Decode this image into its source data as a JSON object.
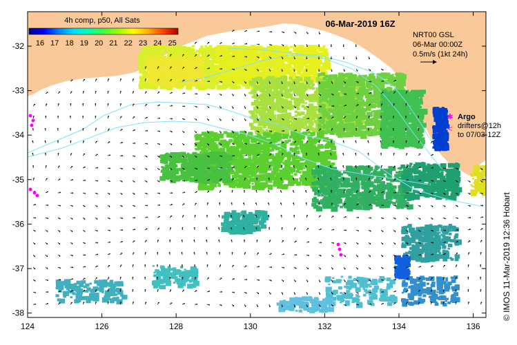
{
  "map": {
    "title": "06-Mar-2019 16Z",
    "colorbar": {
      "title": "4h comp, p50, All Sats",
      "ticks": [
        "16",
        "17",
        "18",
        "19",
        "20",
        "21",
        "22",
        "23",
        "24",
        "25"
      ],
      "colors": [
        "#00008b",
        "#0000ff",
        "#0080ff",
        "#00e0ff",
        "#00ffb0",
        "#40ff40",
        "#a0ff00",
        "#ffff00",
        "#ffb000",
        "#ff4000",
        "#b00000"
      ]
    },
    "current_legend": {
      "line1": "NRT00 GSL",
      "line2": "06-Mar 00:00Z",
      "line3": "0.5m/s (1kt 24h)"
    },
    "argo_legend": {
      "argo_label": "Argo",
      "drifters_line1": "drifters@12h",
      "drifters_line2": "to 07/03-12Z"
    },
    "x_ticks": [
      "124",
      "126",
      "128",
      "130",
      "132",
      "134",
      "136"
    ],
    "y_ticks": [
      "-32",
      "-33",
      "-34",
      "-35",
      "-36",
      "-37",
      "-38"
    ],
    "credit": "© IMOS 11-Mar-2019 12:36 Hobart",
    "colors": {
      "land": "#f9c99a",
      "ocean": "#ffffff",
      "contour": "#7fe0ff",
      "argo": "#ff00ff"
    }
  }
}
